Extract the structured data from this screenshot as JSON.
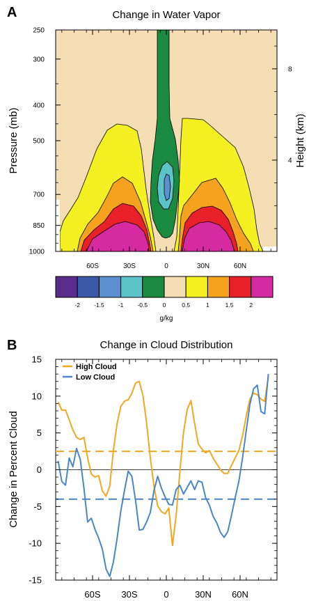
{
  "panel_a": {
    "letter": "A",
    "title": "Change in Water Vapor",
    "ylabel": "Pressure (mb)",
    "ylabel_right": "Height (km)",
    "colorbar_label": "g/kg"
  },
  "panel_b": {
    "letter": "B",
    "title": "Change in Cloud Distribution",
    "ylabel": "Change in Percent Cloud"
  },
  "chart_data": [
    {
      "type": "heatmap",
      "title": "Change in Water Vapor",
      "xlabel": "",
      "ylabel": "Pressure (mb)",
      "ylabel_right": "Height (km)",
      "x_ticks": [
        "60S",
        "30S",
        "0",
        "30N",
        "60N"
      ],
      "x_tick_values": [
        -60,
        -30,
        0,
        30,
        60
      ],
      "xlim": [
        -90,
        90
      ],
      "y_ticks": [
        250,
        300,
        400,
        500,
        700,
        850,
        1000
      ],
      "ylim": [
        1000,
        250
      ],
      "y_scale": "log",
      "right_ticks": [
        4,
        8
      ],
      "colorbar": {
        "label": "g/kg",
        "tick_labels": [
          "-2",
          "-1.5",
          "-1",
          "-0.5",
          "0",
          "0.5",
          "1",
          "1.5",
          "2"
        ],
        "colors": [
          "#5a2d8c",
          "#3a5aa8",
          "#5a8fd0",
          "#5cc4c8",
          "#1a8a40",
          "#f5deb3",
          "#f5f021",
          "#f5a21f",
          "#e8202a",
          "#d62aa0"
        ]
      },
      "regions": [
        {
          "level": "0 to 0.5",
          "description": "background"
        },
        {
          "level": "0.5 to 1",
          "color": "#f5f021"
        },
        {
          "level": "1 to 1.5",
          "color": "#f5a21f"
        },
        {
          "level": "1.5 to 2",
          "color": "#e8202a"
        },
        {
          "level": ">2",
          "color": "#d62aa0"
        },
        {
          "level": "-0.5 to 0",
          "color": "#1a8a40"
        },
        {
          "level": "-1 to -0.5",
          "color": "#5cc4c8"
        },
        {
          "level": "-1.5 to -1",
          "color": "#5a8fd0"
        }
      ]
    },
    {
      "type": "line",
      "title": "Change in Cloud Distribution",
      "xlabel": "",
      "ylabel": "Change in Percent Cloud",
      "xlim": [
        -90,
        90
      ],
      "ylim": [
        -15,
        15
      ],
      "x_ticks": [
        "60S",
        "30S",
        "0",
        "30N",
        "60N"
      ],
      "x_tick_values": [
        -60,
        -30,
        0,
        30,
        60
      ],
      "y_ticks": [
        -15,
        -10,
        -5,
        0,
        5,
        10,
        15
      ],
      "grid": false,
      "legend": "top-left",
      "zero_line": 0,
      "series": [
        {
          "name": "High Cloud",
          "color": "#f5a623",
          "mean": 2.5,
          "points": [
            [
              -88,
              9.2
            ],
            [
              -85,
              8.1
            ],
            [
              -82,
              8.1
            ],
            [
              -79,
              6.8
            ],
            [
              -76,
              5.4
            ],
            [
              -73,
              4.4
            ],
            [
              -70,
              4.1
            ],
            [
              -67,
              4.4
            ],
            [
              -64,
              1.6
            ],
            [
              -61,
              -0.6
            ],
            [
              -58,
              -1.0
            ],
            [
              -55,
              -0.8
            ],
            [
              -52,
              -2.9
            ],
            [
              -49,
              -3.6
            ],
            [
              -46,
              -2.2
            ],
            [
              -43,
              2.7
            ],
            [
              -40,
              6.3
            ],
            [
              -37,
              8.6
            ],
            [
              -34,
              9.3
            ],
            [
              -31,
              9.5
            ],
            [
              -28,
              10.4
            ],
            [
              -25,
              11.8
            ],
            [
              -22,
              12.0
            ],
            [
              -19,
              10.1
            ],
            [
              -16,
              6.3
            ],
            [
              -13,
              1.6
            ],
            [
              -10,
              -2.3
            ],
            [
              -7,
              -4.9
            ],
            [
              -4,
              -5.7
            ],
            [
              -1,
              -6.0
            ],
            [
              2,
              -5.2
            ],
            [
              5,
              -10.3
            ],
            [
              8,
              -6.2
            ],
            [
              11,
              -0.3
            ],
            [
              14,
              5.1
            ],
            [
              17,
              8.2
            ],
            [
              20,
              9.4
            ],
            [
              23,
              6.3
            ],
            [
              26,
              3.5
            ],
            [
              29,
              2.8
            ],
            [
              32,
              2.3
            ],
            [
              35,
              2.6
            ],
            [
              38,
              1.6
            ],
            [
              41,
              0.8
            ],
            [
              44,
              0.0
            ],
            [
              47,
              -0.5
            ],
            [
              50,
              -0.5
            ],
            [
              53,
              0.6
            ],
            [
              56,
              1.6
            ],
            [
              59,
              2.6
            ],
            [
              62,
              4.6
            ],
            [
              65,
              7.3
            ],
            [
              68,
              9.6
            ],
            [
              71,
              10.4
            ],
            [
              74,
              10.2
            ],
            [
              77,
              9.6
            ],
            [
              80,
              9.3
            ],
            [
              83,
              12.6
            ]
          ]
        },
        {
          "name": "Low Cloud",
          "color": "#4a86c5",
          "mean": -4.0,
          "points": [
            [
              -88,
              1.2
            ],
            [
              -85,
              -1.6
            ],
            [
              -82,
              -2.1
            ],
            [
              -79,
              1.6
            ],
            [
              -76,
              0.4
            ],
            [
              -73,
              2.9
            ],
            [
              -70,
              1.4
            ],
            [
              -67,
              -2.5
            ],
            [
              -64,
              -7.1
            ],
            [
              -61,
              -6.6
            ],
            [
              -58,
              -8.1
            ],
            [
              -55,
              -9.3
            ],
            [
              -52,
              -10.8
            ],
            [
              -49,
              -13.5
            ],
            [
              -46,
              -14.5
            ],
            [
              -43,
              -12.5
            ],
            [
              -40,
              -9.3
            ],
            [
              -37,
              -5.6
            ],
            [
              -34,
              -2.8
            ],
            [
              -31,
              -0.2
            ],
            [
              -28,
              -0.9
            ],
            [
              -25,
              -4.2
            ],
            [
              -22,
              -8.2
            ],
            [
              -19,
              -8.1
            ],
            [
              -16,
              -7.1
            ],
            [
              -13,
              -5.8
            ],
            [
              -10,
              -2.8
            ],
            [
              -7,
              -0.9
            ],
            [
              -4,
              -2.5
            ],
            [
              -1,
              -3.7
            ],
            [
              2,
              -4.7
            ],
            [
              5,
              -4.8
            ],
            [
              8,
              -2.7
            ],
            [
              11,
              -2.1
            ],
            [
              14,
              -3.3
            ],
            [
              17,
              -2.4
            ],
            [
              20,
              -1.5
            ],
            [
              23,
              -2.7
            ],
            [
              26,
              -1.5
            ],
            [
              29,
              -1.7
            ],
            [
              32,
              -3.8
            ],
            [
              35,
              -4.8
            ],
            [
              38,
              -6.3
            ],
            [
              41,
              -7.2
            ],
            [
              44,
              -8.5
            ],
            [
              47,
              -9.2
            ],
            [
              50,
              -8.4
            ],
            [
              53,
              -6.2
            ],
            [
              56,
              -3.8
            ],
            [
              59,
              -1.6
            ],
            [
              62,
              1.6
            ],
            [
              65,
              5.3
            ],
            [
              68,
              8.9
            ],
            [
              71,
              11.0
            ],
            [
              74,
              11.5
            ],
            [
              77,
              7.9
            ],
            [
              80,
              7.6
            ],
            [
              83,
              13.0
            ]
          ]
        }
      ]
    }
  ]
}
